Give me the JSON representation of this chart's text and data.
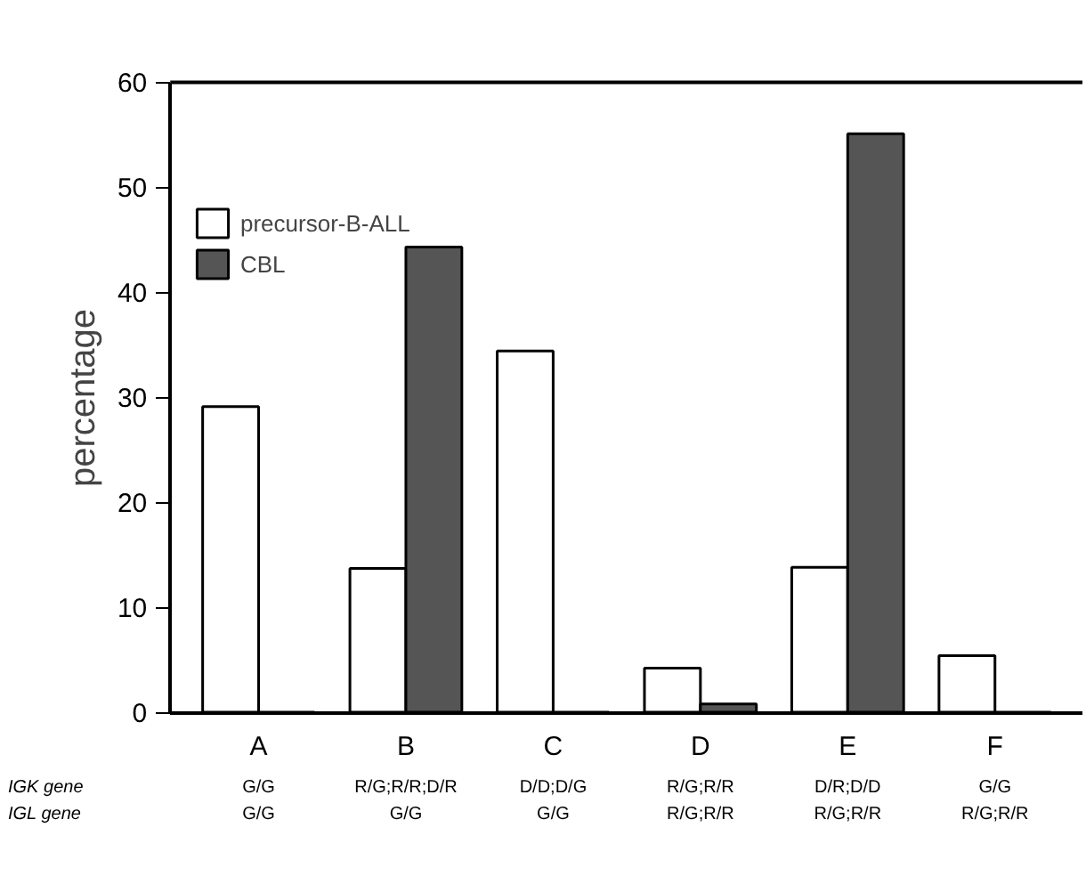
{
  "chart_data": {
    "type": "bar",
    "ylabel": "percentage",
    "categories": [
      "A",
      "B",
      "C",
      "D",
      "E",
      "F"
    ],
    "series": [
      {
        "name": "precursor-B-ALL",
        "color": "#ffffff",
        "values": [
          29.1,
          13.7,
          34.4,
          4.2,
          13.8,
          5.4
        ]
      },
      {
        "name": "CBL",
        "color": "#555555",
        "values": [
          null,
          44.3,
          null,
          0.8,
          55.1,
          null
        ]
      }
    ],
    "ylim": [
      0,
      60
    ],
    "yticks": [
      0,
      10,
      20,
      30,
      40,
      50,
      60
    ],
    "grid": false,
    "legend": "top left",
    "annotations": [
      "IGK gene",
      "IGL gene",
      "G/G",
      "G/G",
      "R/G;R/R;D/R",
      "G/G",
      "D/D;D/G",
      "G/G",
      "R/G;R/R",
      "R/G;R/R",
      "D/R;D/D",
      "R/G;R/R",
      "G/G",
      "R/G;R/R"
    ]
  }
}
